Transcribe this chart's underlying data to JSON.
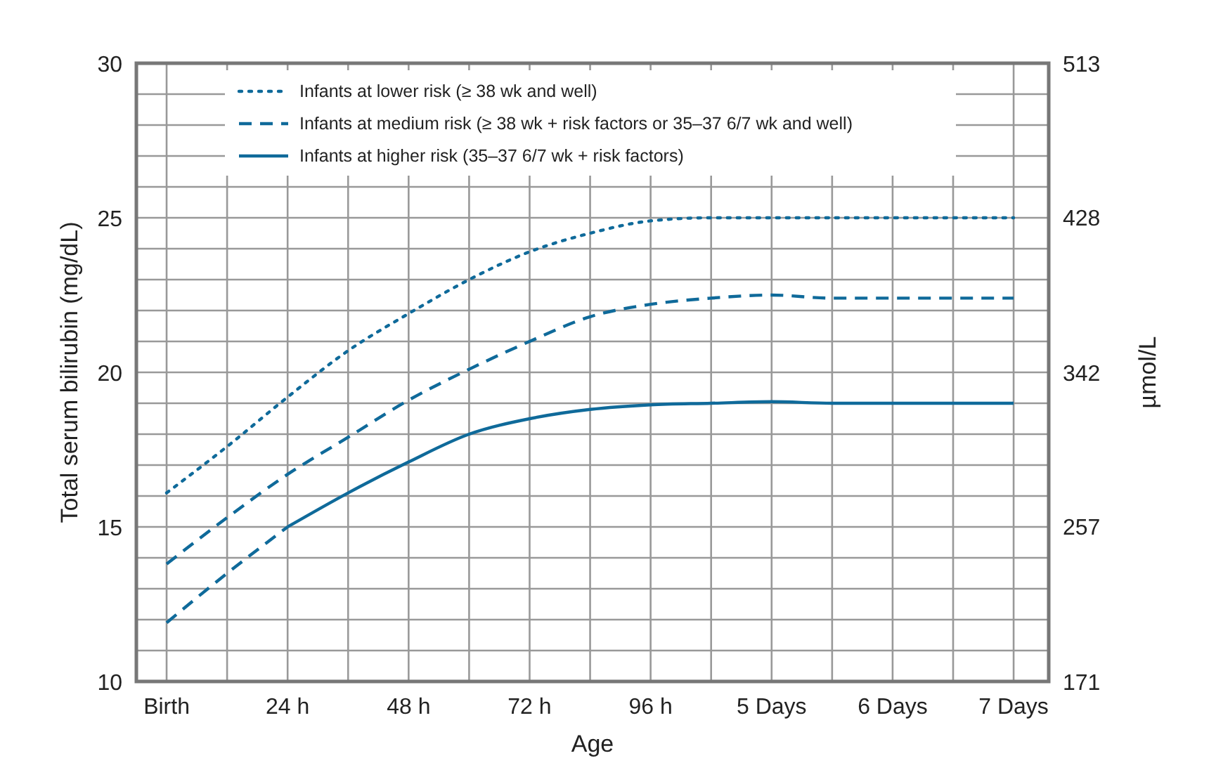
{
  "chart_data": {
    "type": "line",
    "xlabel": "Age",
    "ylabel": "Total serum bilirubin (mg/dL)",
    "y2label": "µmol/L",
    "categories": [
      "Birth",
      null,
      "24 h",
      null,
      "48 h",
      null,
      "72 h",
      null,
      "96 h",
      null,
      "5 Days",
      null,
      "6 Days",
      null,
      "7 Days"
    ],
    "ylim": [
      10,
      30
    ],
    "y2lim": [
      171,
      513
    ],
    "yticks": [
      10,
      {
        "value": 11,
        "label": null
      },
      {
        "value": 12,
        "label": null
      },
      {
        "value": 13,
        "label": null
      },
      {
        "value": 14,
        "label": null
      },
      15,
      {
        "value": 16,
        "label": null
      },
      {
        "value": 17,
        "label": null
      },
      {
        "value": 18,
        "label": null
      },
      {
        "value": 19,
        "label": null
      },
      20,
      {
        "value": 21,
        "label": null
      },
      {
        "value": 22,
        "label": null
      },
      {
        "value": 23,
        "label": null
      },
      {
        "value": 24,
        "label": null
      },
      25,
      {
        "value": 26,
        "label": null
      },
      {
        "value": 27,
        "label": null
      },
      {
        "value": 28,
        "label": null
      },
      {
        "value": 29,
        "label": null
      },
      30
    ],
    "y2ticks": [
      171,
      257,
      342,
      428,
      513
    ],
    "grid": true,
    "legend": "top",
    "series": [
      {
        "name": "Infants at lower risk (≥ 38 wk and well)",
        "color": "#0f6a9a",
        "line_style": "dotted",
        "values": [
          16.1,
          17.6,
          19.2,
          20.7,
          21.9,
          23.0,
          23.9,
          24.5,
          24.9,
          25.0,
          25.0,
          25.0,
          25.0,
          25.0,
          25.0
        ]
      },
      {
        "name": "Infants at medium risk (≥ 38 wk + risk factors or 35–37 6/7 wk and well)",
        "color": "#0f6a9a",
        "line_style": "dashed",
        "values": [
          13.8,
          15.3,
          16.7,
          17.9,
          19.1,
          20.1,
          21.0,
          21.8,
          22.2,
          22.4,
          22.5,
          22.4,
          22.4,
          22.4,
          22.4
        ]
      },
      {
        "color": "#0f6a9a",
        "line_style": "dashed",
        "values": [
          11.9,
          13.5,
          15.0,
          null,
          null,
          null,
          null,
          null,
          null,
          null,
          null,
          null,
          null,
          null,
          null
        ]
      },
      {
        "name": "Infants at higher risk (35–37 6/7 wk + risk factors)",
        "color": "#0f6a9a",
        "line_style": "solid",
        "values": [
          null,
          null,
          15.0,
          16.1,
          17.1,
          18.0,
          18.5,
          18.8,
          18.95,
          19.0,
          19.05,
          19.0,
          19.0,
          19.0,
          19.0
        ]
      }
    ]
  }
}
